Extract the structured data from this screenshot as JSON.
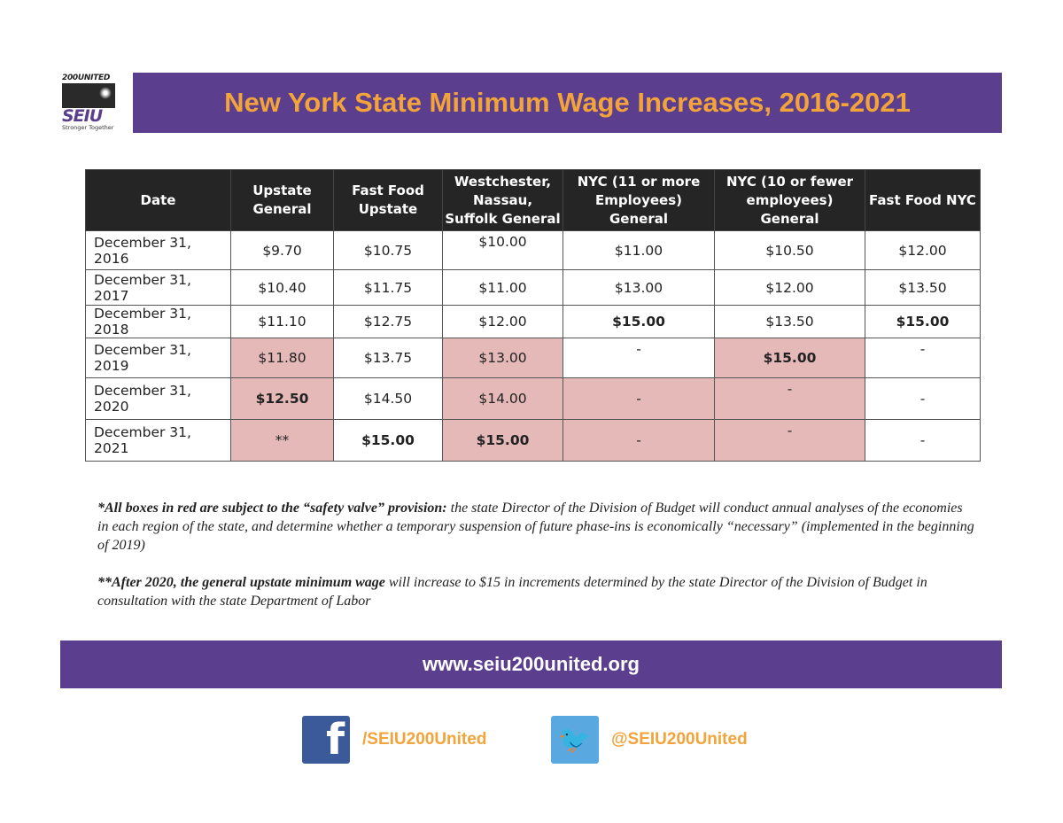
{
  "logo": {
    "top": "200UNITED",
    "name": "SEIU",
    "tagline": "Stronger Together"
  },
  "title": "New York State Minimum Wage Increases, 2016-2021",
  "colors": {
    "brand_purple": "#5b3e8d",
    "accent_orange": "#f2a33a",
    "safety_valve_red": "#e6b9b9"
  },
  "table": {
    "headers": [
      "Date",
      "Upstate General",
      "Fast Food Upstate",
      "Westchester, Nassau, Suffolk General",
      "NYC (11 or more Employees) General",
      "NYC (10 or fewer employees) General",
      "Fast Food NYC"
    ],
    "rows": [
      {
        "cells": [
          {
            "v": "December 31, 2016"
          },
          {
            "v": "$9.70"
          },
          {
            "v": "$10.75"
          },
          {
            "v": "$10.00",
            "top": true
          },
          {
            "v": "$11.00"
          },
          {
            "v": "$10.50"
          },
          {
            "v": "$12.00"
          }
        ]
      },
      {
        "cells": [
          {
            "v": "December 31, 2017"
          },
          {
            "v": "$10.40"
          },
          {
            "v": "$11.75"
          },
          {
            "v": "$11.00"
          },
          {
            "v": "$13.00"
          },
          {
            "v": "$12.00"
          },
          {
            "v": "$13.50"
          }
        ]
      },
      {
        "cells": [
          {
            "v": "December 31, 2018"
          },
          {
            "v": "$11.10"
          },
          {
            "v": "$12.75"
          },
          {
            "v": "$12.00"
          },
          {
            "v": "$15.00",
            "bold": true
          },
          {
            "v": "$13.50"
          },
          {
            "v": "$15.00",
            "bold": true
          }
        ]
      },
      {
        "cells": [
          {
            "v": "December 31, 2019"
          },
          {
            "v": "$11.80",
            "red": true
          },
          {
            "v": "$13.75"
          },
          {
            "v": "$13.00",
            "red": true
          },
          {
            "v": "-",
            "top": true
          },
          {
            "v": "$15.00",
            "bold": true,
            "red": true
          },
          {
            "v": "-",
            "top": true
          }
        ]
      },
      {
        "cells": [
          {
            "v": "December 31, 2020"
          },
          {
            "v": "$12.50",
            "bold": true,
            "red": true
          },
          {
            "v": "$14.50"
          },
          {
            "v": "$14.00",
            "red": true
          },
          {
            "v": "-",
            "red": true
          },
          {
            "v": "-",
            "red": true,
            "top": true
          },
          {
            "v": "-"
          }
        ]
      },
      {
        "cells": [
          {
            "v": "December 31, 2021"
          },
          {
            "v": "**",
            "red": true
          },
          {
            "v": "$15.00",
            "bold": true
          },
          {
            "v": "$15.00",
            "bold": true,
            "red": true
          },
          {
            "v": "-",
            "red": true
          },
          {
            "v": "-",
            "red": true,
            "top": true
          },
          {
            "v": "-"
          }
        ]
      }
    ]
  },
  "notes": [
    {
      "bold": "*All boxes in red are subject to the “safety valve” provision:",
      "text": " the state Director of the Division of Budget will conduct annual analyses of the economies in each region of the state, and determine whether a temporary suspension of future phase-ins is economically “necessary” (implemented in the beginning of 2019)"
    },
    {
      "bold": "**After 2020, the general upstate minimum wage",
      "text": " will increase to $15 in increments determined by the state Director of the Division of Budget in consultation with the state Department of Labor"
    }
  ],
  "footer": {
    "url": "www.seiu200united.org",
    "facebook": "/SEIU200United",
    "twitter": "@SEIU200United",
    "facebook_icon": "facebook-icon",
    "twitter_icon": "twitter-icon"
  }
}
